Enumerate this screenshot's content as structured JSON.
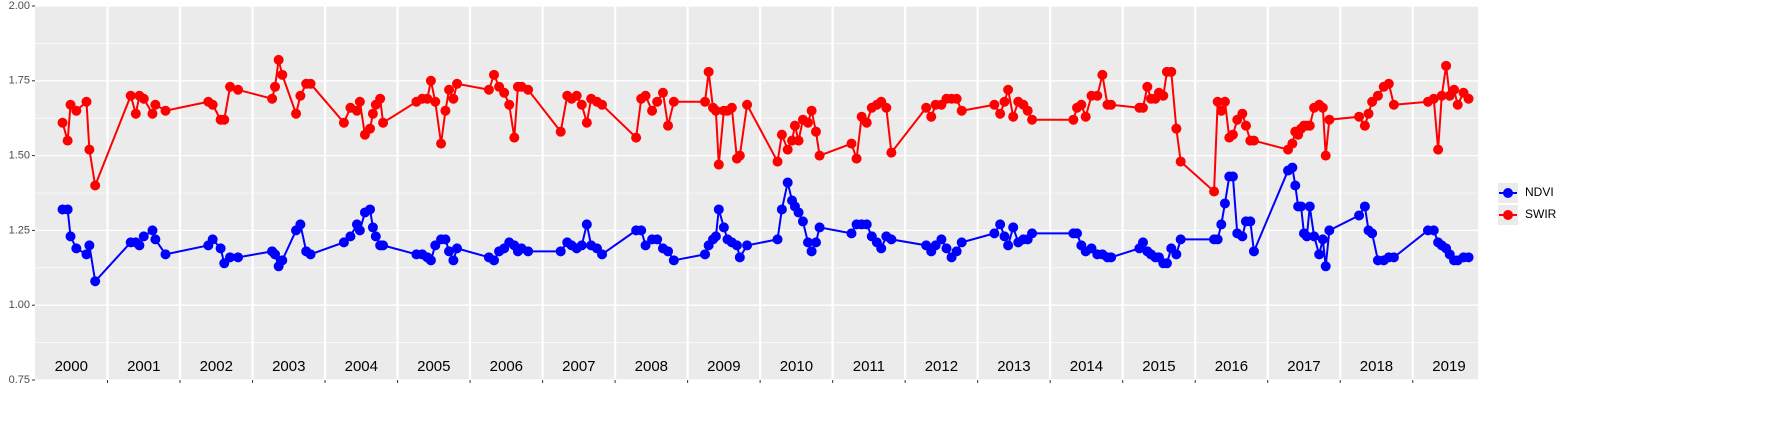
{
  "chart_data": {
    "type": "line",
    "xlim": [
      2000,
      2019.9
    ],
    "ylim": [
      0.75,
      2.0
    ],
    "yticks": [
      0.75,
      {
        "value": 1.0,
        "label": "1.00"
      },
      1.25,
      {
        "value": 1.5,
        "label": "1.50"
      },
      1.75,
      {
        "value": 2.0,
        "label": "2.00"
      }
    ],
    "xbreaks": [
      2001,
      2002,
      2003,
      2004,
      2005,
      2006,
      2007,
      2008,
      2009,
      2010,
      2011,
      2012,
      2013,
      2014,
      2015,
      2016,
      2017,
      2018,
      2019
    ],
    "grid": true,
    "legend": "right",
    "year_labels": [
      {
        "x": 2000.5,
        "text": "2000"
      },
      {
        "x": 2001.5,
        "text": "2001"
      },
      {
        "x": 2002.5,
        "text": "2002"
      },
      {
        "x": 2003.5,
        "text": "2003"
      },
      {
        "x": 2004.5,
        "text": "2004"
      },
      {
        "x": 2005.5,
        "text": "2005"
      },
      {
        "x": 2006.5,
        "text": "2006"
      },
      {
        "x": 2007.5,
        "text": "2007"
      },
      {
        "x": 2008.5,
        "text": "2008"
      },
      {
        "x": 2009.5,
        "text": "2009"
      },
      {
        "x": 2010.5,
        "text": "2010"
      },
      {
        "x": 2011.5,
        "text": "2011"
      },
      {
        "x": 2012.5,
        "text": "2012"
      },
      {
        "x": 2013.5,
        "text": "2013"
      },
      {
        "x": 2014.5,
        "text": "2014"
      },
      {
        "x": 2015.5,
        "text": "2015"
      },
      {
        "x": 2016.5,
        "text": "2016"
      },
      {
        "x": 2017.5,
        "text": "2017"
      },
      {
        "x": 2018.5,
        "text": "2018"
      },
      {
        "x": 2019.5,
        "text": "2019"
      }
    ],
    "x": [
      2000.38,
      2000.45,
      2000.49,
      2000.57,
      2000.71,
      2000.75,
      2000.83,
      2001.32,
      2001.39,
      2001.44,
      2001.5,
      2001.62,
      2001.66,
      2001.8,
      2002.39,
      2002.45,
      2002.56,
      2002.61,
      2002.69,
      2002.8,
      2003.27,
      2003.31,
      2003.36,
      2003.41,
      2003.6,
      2003.66,
      2003.74,
      2003.8,
      2004.26,
      2004.35,
      2004.44,
      2004.48,
      2004.55,
      2004.62,
      2004.66,
      2004.7,
      2004.76,
      2004.8,
      2005.26,
      2005.34,
      2005.41,
      2005.46,
      2005.52,
      2005.6,
      2005.66,
      2005.71,
      2005.77,
      2005.82,
      2006.26,
      2006.33,
      2006.4,
      2006.47,
      2006.54,
      2006.61,
      2006.66,
      2006.71,
      2006.8,
      2007.25,
      2007.34,
      2007.4,
      2007.47,
      2007.54,
      2007.61,
      2007.67,
      2007.75,
      2007.82,
      2008.29,
      2008.36,
      2008.42,
      2008.51,
      2008.58,
      2008.66,
      2008.73,
      2008.81,
      2009.24,
      2009.29,
      2009.35,
      2009.39,
      2009.43,
      2009.5,
      2009.55,
      2009.61,
      2009.68,
      2009.72,
      2009.82,
      2010.24,
      2010.3,
      2010.38,
      2010.44,
      2010.48,
      2010.53,
      2010.59,
      2010.66,
      2010.71,
      2010.77,
      2010.82,
      2011.26,
      2011.33,
      2011.4,
      2011.47,
      2011.54,
      2011.61,
      2011.67,
      2011.74,
      2011.81,
      2012.29,
      2012.36,
      2012.42,
      2012.5,
      2012.57,
      2012.64,
      2012.71,
      2012.78,
      2013.23,
      2013.31,
      2013.37,
      2013.42,
      2013.49,
      2013.56,
      2013.63,
      2013.69,
      2013.75,
      2014.32,
      2014.37,
      2014.43,
      2014.49,
      2014.57,
      2014.65,
      2014.72,
      2014.79,
      2014.84,
      2015.23,
      2015.28,
      2015.34,
      2015.39,
      2015.45,
      2015.5,
      2015.56,
      2015.61,
      2015.67,
      2015.74,
      2015.8,
      2016.26,
      2016.31,
      2016.36,
      2016.41,
      2016.47,
      2016.52,
      2016.58,
      2016.65,
      2016.7,
      2016.76,
      2016.81,
      2017.28,
      2017.34,
      2017.38,
      2017.42,
      2017.46,
      2017.5,
      2017.54,
      2017.58,
      2017.64,
      2017.71,
      2017.76,
      2017.8,
      2017.85,
      2018.26,
      2018.34,
      2018.39,
      2018.44,
      2018.52,
      2018.6,
      2018.67,
      2018.74,
      2019.21,
      2019.29,
      2019.35,
      2019.4,
      2019.46,
      2019.51,
      2019.57,
      2019.62,
      2019.7,
      2019.77
    ],
    "series": [
      {
        "name": "NDVI",
        "color": "#0000ff",
        "values": [
          1.32,
          1.32,
          1.23,
          1.19,
          1.17,
          1.2,
          1.08,
          1.21,
          1.21,
          1.2,
          1.23,
          1.25,
          1.22,
          1.17,
          1.2,
          1.22,
          1.19,
          1.14,
          1.16,
          1.16,
          1.18,
          1.17,
          1.13,
          1.15,
          1.25,
          1.27,
          1.18,
          1.17,
          1.21,
          1.23,
          1.27,
          1.25,
          1.31,
          1.32,
          1.26,
          1.23,
          1.2,
          1.2,
          1.17,
          1.17,
          1.16,
          1.15,
          1.2,
          1.22,
          1.22,
          1.18,
          1.15,
          1.19,
          1.16,
          1.15,
          1.18,
          1.19,
          1.21,
          1.2,
          1.18,
          1.19,
          1.18,
          1.18,
          1.21,
          1.2,
          1.19,
          1.2,
          1.27,
          1.2,
          1.19,
          1.17,
          1.25,
          1.25,
          1.2,
          1.22,
          1.22,
          1.19,
          1.18,
          1.15,
          1.17,
          1.2,
          1.22,
          1.23,
          1.32,
          1.26,
          1.22,
          1.21,
          1.2,
          1.16,
          1.2,
          1.22,
          1.32,
          1.41,
          1.35,
          1.33,
          1.31,
          1.28,
          1.21,
          1.18,
          1.21,
          1.26,
          1.24,
          1.27,
          1.27,
          1.27,
          1.23,
          1.21,
          1.19,
          1.23,
          1.22,
          1.2,
          1.18,
          1.2,
          1.22,
          1.19,
          1.16,
          1.18,
          1.21,
          1.24,
          1.27,
          1.23,
          1.2,
          1.26,
          1.21,
          1.22,
          1.22,
          1.24,
          1.24,
          1.24,
          1.2,
          1.18,
          1.19,
          1.17,
          1.17,
          1.16,
          1.16,
          1.19,
          1.21,
          1.18,
          1.17,
          1.16,
          1.16,
          1.14,
          1.14,
          1.19,
          1.17,
          1.22,
          1.22,
          1.22,
          1.27,
          1.34,
          1.43,
          1.43,
          1.24,
          1.23,
          1.28,
          1.28,
          1.18,
          1.45,
          1.46,
          1.4,
          1.33,
          1.33,
          1.24,
          1.23,
          1.33,
          1.23,
          1.17,
          1.22,
          1.13,
          1.25,
          1.3,
          1.33,
          1.25,
          1.24,
          1.15,
          1.15,
          1.16,
          1.16,
          1.25,
          1.25,
          1.21,
          1.2,
          1.19,
          1.17,
          1.15,
          1.15,
          1.16,
          1.16
        ]
      },
      {
        "name": "SWIR",
        "color": "#ff0000",
        "values": [
          1.61,
          1.55,
          1.67,
          1.65,
          1.68,
          1.52,
          1.4,
          1.7,
          1.64,
          1.7,
          1.69,
          1.64,
          1.67,
          1.65,
          1.68,
          1.67,
          1.62,
          1.62,
          1.73,
          1.72,
          1.69,
          1.73,
          1.82,
          1.77,
          1.64,
          1.7,
          1.74,
          1.74,
          1.61,
          1.66,
          1.65,
          1.68,
          1.57,
          1.59,
          1.64,
          1.67,
          1.69,
          1.61,
          1.68,
          1.69,
          1.69,
          1.75,
          1.68,
          1.54,
          1.65,
          1.72,
          1.69,
          1.74,
          1.72,
          1.77,
          1.73,
          1.71,
          1.67,
          1.56,
          1.73,
          1.73,
          1.72,
          1.58,
          1.7,
          1.69,
          1.7,
          1.67,
          1.61,
          1.69,
          1.68,
          1.67,
          1.56,
          1.69,
          1.7,
          1.65,
          1.68,
          1.71,
          1.6,
          1.68,
          1.68,
          1.78,
          1.66,
          1.65,
          1.47,
          1.65,
          1.65,
          1.66,
          1.49,
          1.5,
          1.67,
          1.48,
          1.57,
          1.52,
          1.55,
          1.6,
          1.55,
          1.62,
          1.61,
          1.65,
          1.58,
          1.5,
          1.54,
          1.49,
          1.63,
          1.61,
          1.66,
          1.67,
          1.68,
          1.66,
          1.51,
          1.66,
          1.63,
          1.67,
          1.67,
          1.69,
          1.69,
          1.69,
          1.65,
          1.67,
          1.64,
          1.68,
          1.72,
          1.63,
          1.68,
          1.67,
          1.65,
          1.62,
          1.62,
          1.66,
          1.67,
          1.63,
          1.7,
          1.7,
          1.77,
          1.67,
          1.67,
          1.66,
          1.66,
          1.73,
          1.69,
          1.69,
          1.71,
          1.7,
          1.78,
          1.78,
          1.59,
          1.48,
          1.38,
          1.68,
          1.65,
          1.68,
          1.56,
          1.57,
          1.62,
          1.64,
          1.6,
          1.55,
          1.55,
          1.52,
          1.54,
          1.58,
          1.57,
          1.59,
          1.6,
          1.6,
          1.6,
          1.66,
          1.67,
          1.66,
          1.5,
          1.62,
          1.63,
          1.6,
          1.64,
          1.68,
          1.7,
          1.73,
          1.74,
          1.67,
          1.68,
          1.69,
          1.52,
          1.7,
          1.8,
          1.7,
          1.72,
          1.67,
          1.71,
          1.69
        ]
      }
    ]
  }
}
